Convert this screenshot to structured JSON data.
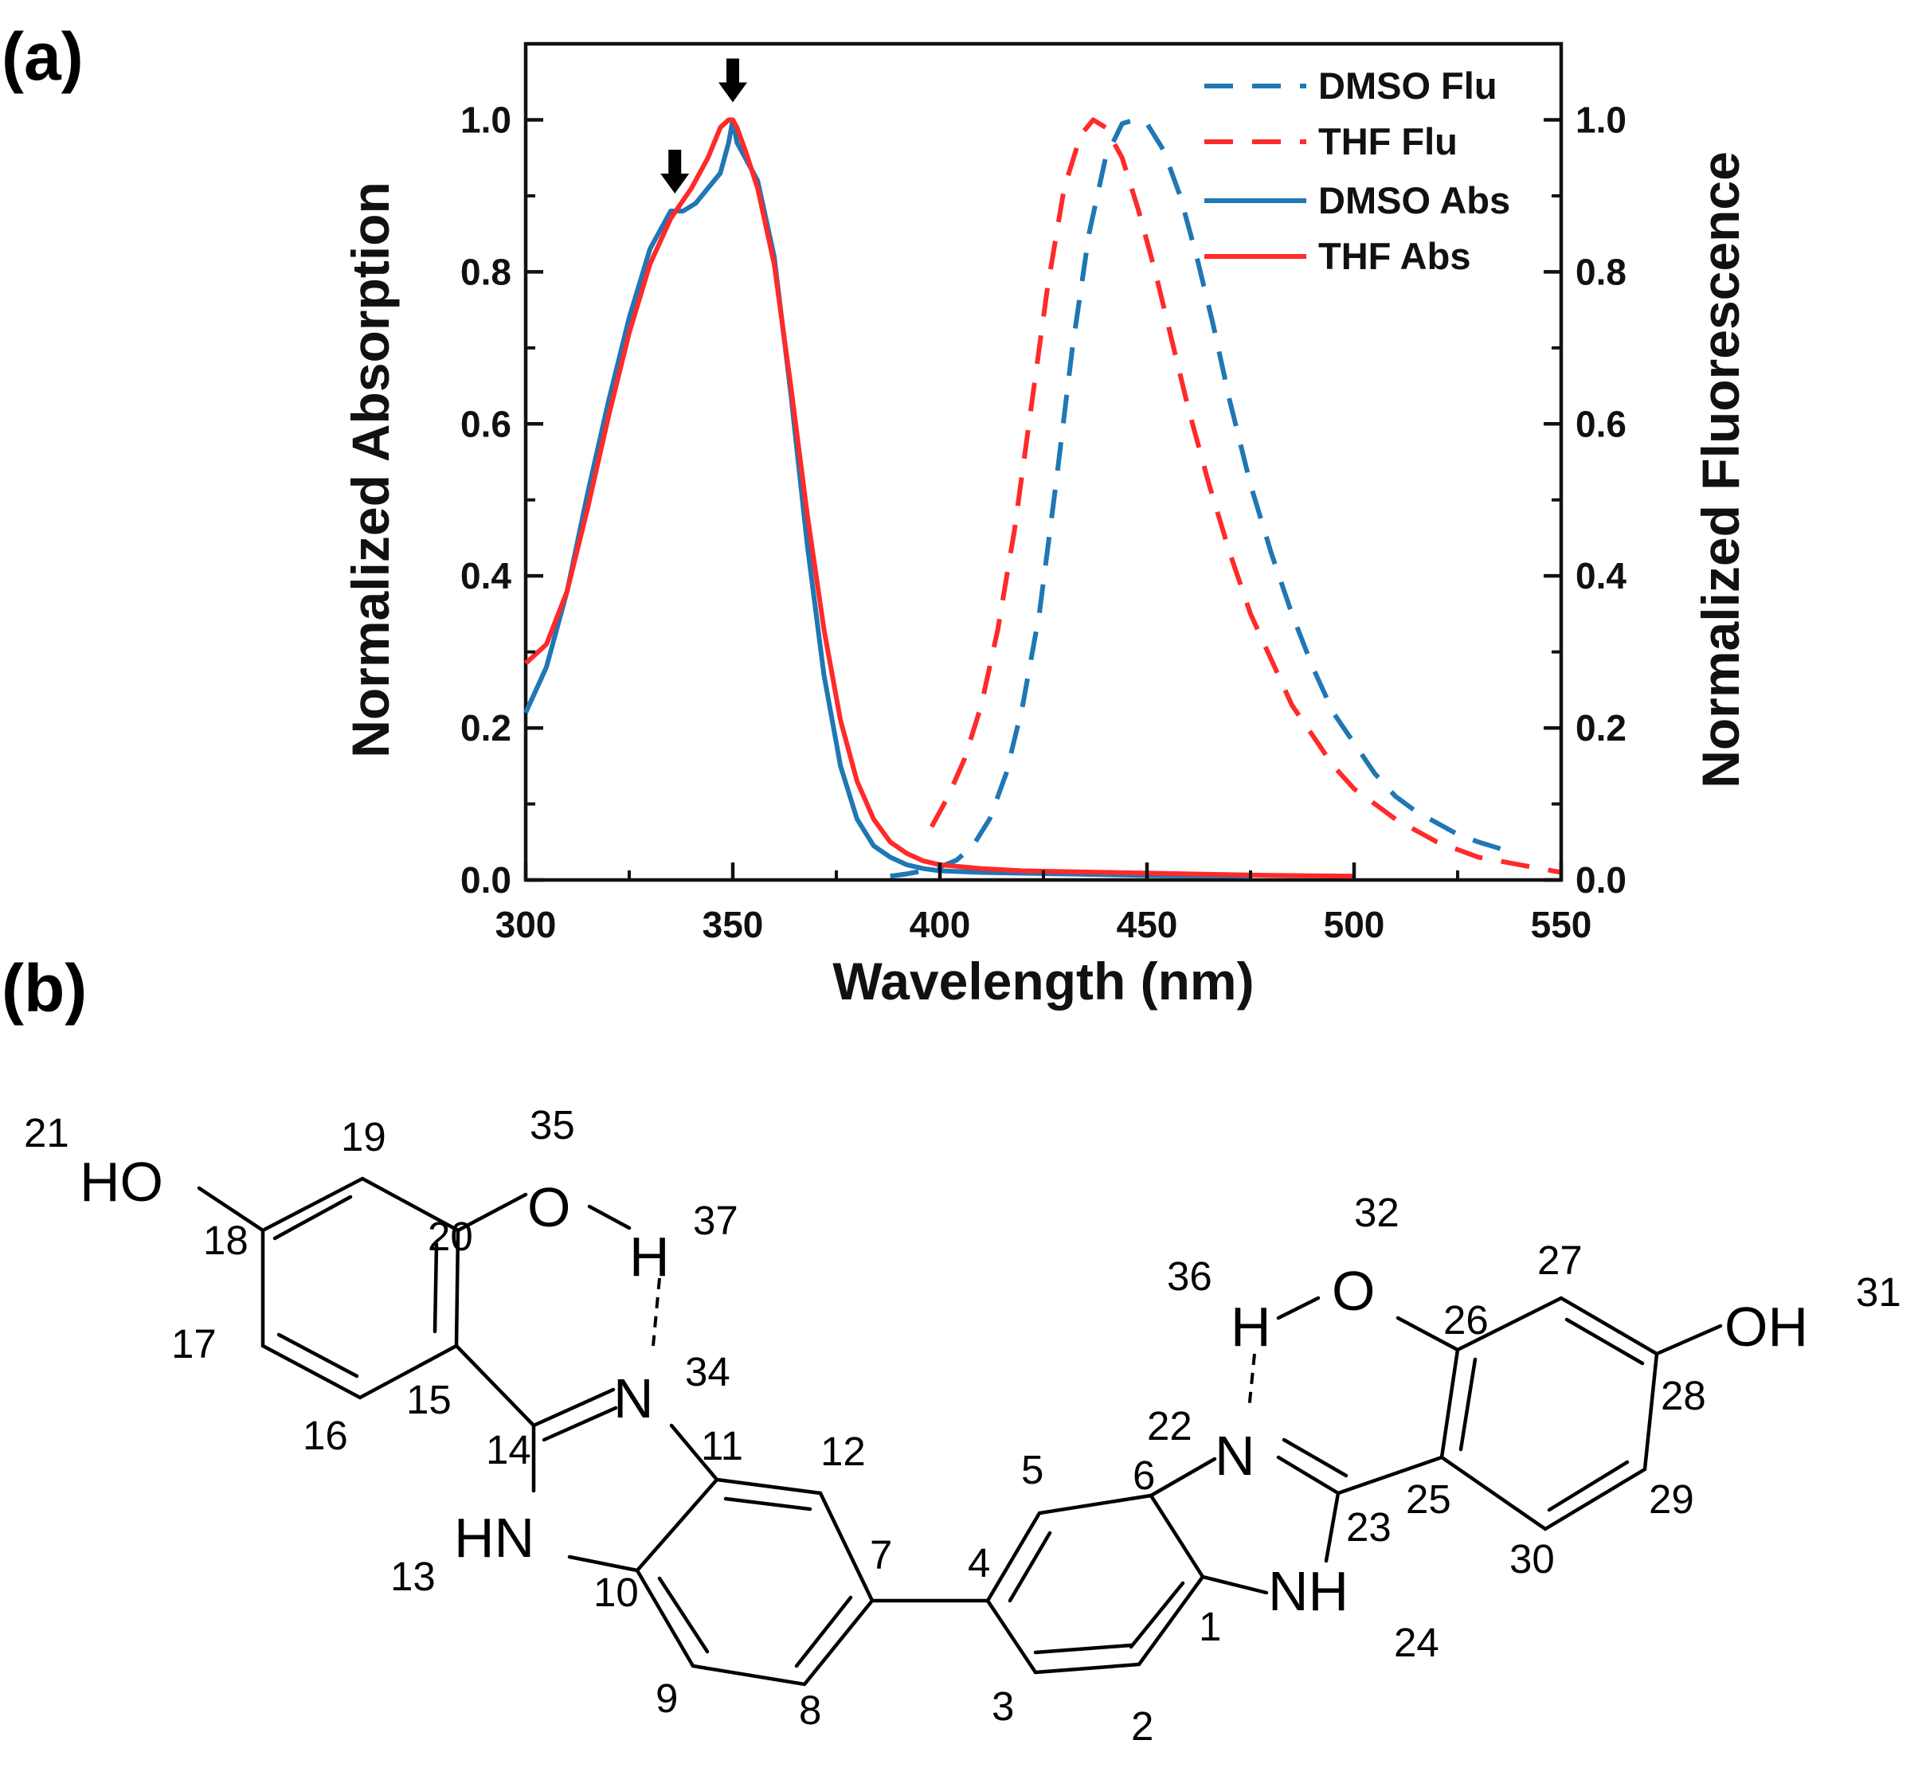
{
  "panel_a_label": "(a)",
  "panel_b_label": "(b)",
  "colors": {
    "dmso": "#1f77b4",
    "thf": "#ff2a2a",
    "axes": "#111111"
  },
  "chart_data": {
    "type": "line",
    "xlabel": "Wavelength (nm)",
    "ylabel_left": "Normalized Absorption",
    "ylabel_right": "Normalized Fluorescence",
    "xlim": [
      300,
      550
    ],
    "ylim": [
      0,
      1.1
    ],
    "x_ticks": [
      "300",
      "350",
      "400",
      "450",
      "500",
      "550"
    ],
    "y_ticks": [
      "0.0",
      "0.2",
      "0.4",
      "0.6",
      "0.8",
      "1.0"
    ],
    "legend_position": "top-right",
    "peak_markers": [
      {
        "x": 336,
        "y": 0.88
      },
      {
        "x": 350,
        "y": 1.0
      }
    ],
    "series": [
      {
        "name": "DMSO Flu",
        "style": "dashed",
        "color_key": "dmso",
        "x": [
          388,
          392,
          396,
          400,
          404,
          408,
          412,
          416,
          420,
          424,
          428,
          432,
          436,
          440,
          444,
          447,
          450,
          454,
          458,
          462,
          466,
          470,
          475,
          480,
          485,
          490,
          495,
          500,
          505,
          510,
          515,
          520,
          525,
          530,
          536
        ],
        "y": [
          0.005,
          0.008,
          0.012,
          0.017,
          0.026,
          0.045,
          0.08,
          0.14,
          0.23,
          0.35,
          0.52,
          0.7,
          0.85,
          0.95,
          0.995,
          1.0,
          0.995,
          0.96,
          0.9,
          0.82,
          0.73,
          0.63,
          0.52,
          0.43,
          0.35,
          0.28,
          0.22,
          0.18,
          0.14,
          0.11,
          0.09,
          0.075,
          0.06,
          0.05,
          0.04
        ]
      },
      {
        "name": "THF Flu",
        "style": "dashed",
        "color_key": "thf",
        "x": [
          398,
          402,
          406,
          410,
          414,
          418,
          422,
          426,
          430,
          434,
          437,
          440,
          444,
          448,
          452,
          456,
          460,
          465,
          470,
          475,
          480,
          485,
          490,
          495,
          500,
          505,
          510,
          515,
          520,
          525,
          530,
          535,
          540,
          545,
          550
        ],
        "y": [
          0.07,
          0.11,
          0.16,
          0.23,
          0.33,
          0.46,
          0.62,
          0.78,
          0.91,
          0.98,
          1.0,
          0.99,
          0.95,
          0.88,
          0.8,
          0.71,
          0.62,
          0.52,
          0.43,
          0.35,
          0.29,
          0.23,
          0.19,
          0.15,
          0.12,
          0.1,
          0.08,
          0.065,
          0.05,
          0.04,
          0.03,
          0.025,
          0.02,
          0.015,
          0.01
        ]
      },
      {
        "name": "DMSO Abs",
        "style": "solid",
        "color_key": "dmso",
        "x": [
          300,
          305,
          310,
          315,
          320,
          325,
          330,
          335,
          338,
          341,
          344,
          347,
          349,
          350,
          351,
          353,
          356,
          360,
          364,
          368,
          372,
          376,
          380,
          384,
          388,
          392,
          396,
          400,
          410,
          430,
          450,
          475
        ],
        "y": [
          0.22,
          0.28,
          0.38,
          0.51,
          0.63,
          0.74,
          0.83,
          0.88,
          0.88,
          0.89,
          0.91,
          0.93,
          0.97,
          1.0,
          0.97,
          0.95,
          0.92,
          0.82,
          0.64,
          0.44,
          0.27,
          0.15,
          0.08,
          0.045,
          0.03,
          0.02,
          0.015,
          0.012,
          0.01,
          0.008,
          0.006,
          0.005
        ]
      },
      {
        "name": "THF Abs",
        "style": "solid",
        "color_key": "thf",
        "x": [
          300,
          305,
          310,
          315,
          320,
          325,
          330,
          335,
          340,
          344,
          347,
          349,
          350,
          351,
          353,
          356,
          360,
          364,
          368,
          372,
          376,
          380,
          384,
          388,
          392,
          396,
          400,
          410,
          420,
          440,
          460,
          480,
          500
        ],
        "y": [
          0.285,
          0.31,
          0.38,
          0.49,
          0.61,
          0.72,
          0.81,
          0.87,
          0.91,
          0.95,
          0.99,
          1.0,
          1.0,
          0.99,
          0.96,
          0.91,
          0.81,
          0.65,
          0.48,
          0.33,
          0.21,
          0.13,
          0.08,
          0.05,
          0.035,
          0.025,
          0.02,
          0.015,
          0.012,
          0.01,
          0.008,
          0.006,
          0.005
        ]
      }
    ]
  },
  "molecule": {
    "atoms": {
      "HO_21": "HO",
      "O_35": "O",
      "H_37": "H",
      "N_34": "N",
      "HN_13": "HN",
      "H_36": "H",
      "O_32": "O",
      "OH_31": "OH",
      "N_22": "N",
      "NH_24": "NH"
    },
    "atom_numbers": [
      "1",
      "2",
      "3",
      "4",
      "5",
      "6",
      "7",
      "8",
      "9",
      "10",
      "11",
      "12",
      "13",
      "14",
      "15",
      "16",
      "17",
      "18",
      "19",
      "20",
      "21",
      "22",
      "23",
      "24",
      "25",
      "26",
      "27",
      "28",
      "29",
      "30",
      "31",
      "32",
      "34",
      "35",
      "36",
      "37"
    ]
  }
}
